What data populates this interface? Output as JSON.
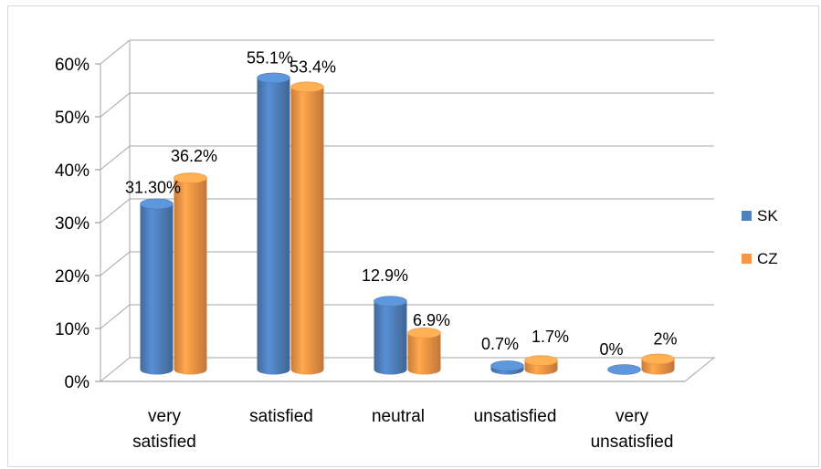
{
  "chart_data": {
    "type": "bar",
    "style": "3d-cylinder",
    "categories": [
      [
        "very",
        "satisfied"
      ],
      [
        "satisfied"
      ],
      [
        "neutral"
      ],
      [
        "unsatisfied"
      ],
      [
        "very",
        "unsatisfied"
      ]
    ],
    "series": [
      {
        "name": "SK",
        "color": "#4f81bd",
        "values": [
          31.3,
          55.1,
          12.9,
          0.7,
          0
        ],
        "labels": [
          "31.30%",
          "55.1%",
          "12.9%",
          "0.7%",
          "0%"
        ]
      },
      {
        "name": "CZ",
        "color": "#f79646",
        "values": [
          36.2,
          53.4,
          6.9,
          1.7,
          2
        ],
        "labels": [
          "36.2%",
          "53.4%",
          "6.9%",
          "1.7%",
          "2%"
        ]
      }
    ],
    "yticks": [
      "0%",
      "10%",
      "20%",
      "30%",
      "40%",
      "50%",
      "60%"
    ],
    "ylim": [
      0,
      60
    ],
    "grid": true,
    "legend_position": "right"
  }
}
